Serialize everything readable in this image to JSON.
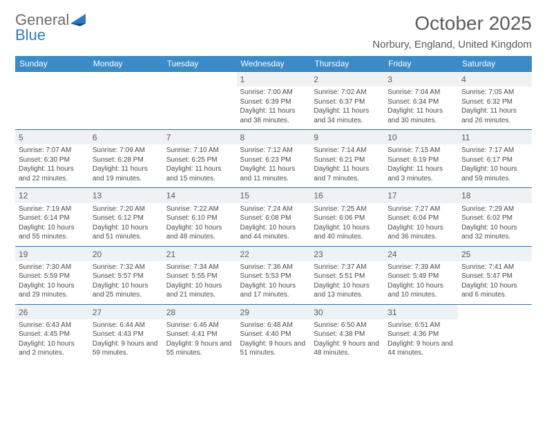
{
  "logo": {
    "word1": "General",
    "word2": "Blue"
  },
  "title": "October 2025",
  "location": "Norbury, England, United Kingdom",
  "colors": {
    "header_bg": "#3b8bc8",
    "header_text": "#ffffff",
    "rule": "#2f6fa5",
    "band": "#eef2f5",
    "text": "#4a4a4a",
    "logo_gray": "#6a6a6a",
    "logo_blue": "#2f7bbf"
  },
  "day_headers": [
    "Sunday",
    "Monday",
    "Tuesday",
    "Wednesday",
    "Thursday",
    "Friday",
    "Saturday"
  ],
  "weeks": [
    [
      null,
      null,
      null,
      {
        "n": "1",
        "sr": "7:00 AM",
        "ss": "6:39 PM",
        "dl": "11 hours and 38 minutes."
      },
      {
        "n": "2",
        "sr": "7:02 AM",
        "ss": "6:37 PM",
        "dl": "11 hours and 34 minutes."
      },
      {
        "n": "3",
        "sr": "7:04 AM",
        "ss": "6:34 PM",
        "dl": "11 hours and 30 minutes."
      },
      {
        "n": "4",
        "sr": "7:05 AM",
        "ss": "6:32 PM",
        "dl": "11 hours and 26 minutes."
      }
    ],
    [
      {
        "n": "5",
        "sr": "7:07 AM",
        "ss": "6:30 PM",
        "dl": "11 hours and 22 minutes."
      },
      {
        "n": "6",
        "sr": "7:09 AM",
        "ss": "6:28 PM",
        "dl": "11 hours and 19 minutes."
      },
      {
        "n": "7",
        "sr": "7:10 AM",
        "ss": "6:25 PM",
        "dl": "11 hours and 15 minutes."
      },
      {
        "n": "8",
        "sr": "7:12 AM",
        "ss": "6:23 PM",
        "dl": "11 hours and 11 minutes."
      },
      {
        "n": "9",
        "sr": "7:14 AM",
        "ss": "6:21 PM",
        "dl": "11 hours and 7 minutes."
      },
      {
        "n": "10",
        "sr": "7:15 AM",
        "ss": "6:19 PM",
        "dl": "11 hours and 3 minutes."
      },
      {
        "n": "11",
        "sr": "7:17 AM",
        "ss": "6:17 PM",
        "dl": "10 hours and 59 minutes."
      }
    ],
    [
      {
        "n": "12",
        "sr": "7:19 AM",
        "ss": "6:14 PM",
        "dl": "10 hours and 55 minutes."
      },
      {
        "n": "13",
        "sr": "7:20 AM",
        "ss": "6:12 PM",
        "dl": "10 hours and 51 minutes."
      },
      {
        "n": "14",
        "sr": "7:22 AM",
        "ss": "6:10 PM",
        "dl": "10 hours and 48 minutes."
      },
      {
        "n": "15",
        "sr": "7:24 AM",
        "ss": "6:08 PM",
        "dl": "10 hours and 44 minutes."
      },
      {
        "n": "16",
        "sr": "7:25 AM",
        "ss": "6:06 PM",
        "dl": "10 hours and 40 minutes."
      },
      {
        "n": "17",
        "sr": "7:27 AM",
        "ss": "6:04 PM",
        "dl": "10 hours and 36 minutes."
      },
      {
        "n": "18",
        "sr": "7:29 AM",
        "ss": "6:02 PM",
        "dl": "10 hours and 32 minutes."
      }
    ],
    [
      {
        "n": "19",
        "sr": "7:30 AM",
        "ss": "5:59 PM",
        "dl": "10 hours and 29 minutes."
      },
      {
        "n": "20",
        "sr": "7:32 AM",
        "ss": "5:57 PM",
        "dl": "10 hours and 25 minutes."
      },
      {
        "n": "21",
        "sr": "7:34 AM",
        "ss": "5:55 PM",
        "dl": "10 hours and 21 minutes."
      },
      {
        "n": "22",
        "sr": "7:36 AM",
        "ss": "5:53 PM",
        "dl": "10 hours and 17 minutes."
      },
      {
        "n": "23",
        "sr": "7:37 AM",
        "ss": "5:51 PM",
        "dl": "10 hours and 13 minutes."
      },
      {
        "n": "24",
        "sr": "7:39 AM",
        "ss": "5:49 PM",
        "dl": "10 hours and 10 minutes."
      },
      {
        "n": "25",
        "sr": "7:41 AM",
        "ss": "5:47 PM",
        "dl": "10 hours and 6 minutes."
      }
    ],
    [
      {
        "n": "26",
        "sr": "6:43 AM",
        "ss": "4:45 PM",
        "dl": "10 hours and 2 minutes."
      },
      {
        "n": "27",
        "sr": "6:44 AM",
        "ss": "4:43 PM",
        "dl": "9 hours and 59 minutes."
      },
      {
        "n": "28",
        "sr": "6:46 AM",
        "ss": "4:41 PM",
        "dl": "9 hours and 55 minutes."
      },
      {
        "n": "29",
        "sr": "6:48 AM",
        "ss": "4:40 PM",
        "dl": "9 hours and 51 minutes."
      },
      {
        "n": "30",
        "sr": "6:50 AM",
        "ss": "4:38 PM",
        "dl": "9 hours and 48 minutes."
      },
      {
        "n": "31",
        "sr": "6:51 AM",
        "ss": "4:36 PM",
        "dl": "9 hours and 44 minutes."
      },
      null
    ]
  ],
  "labels": {
    "sunrise": "Sunrise:",
    "sunset": "Sunset:",
    "daylight": "Daylight:"
  }
}
